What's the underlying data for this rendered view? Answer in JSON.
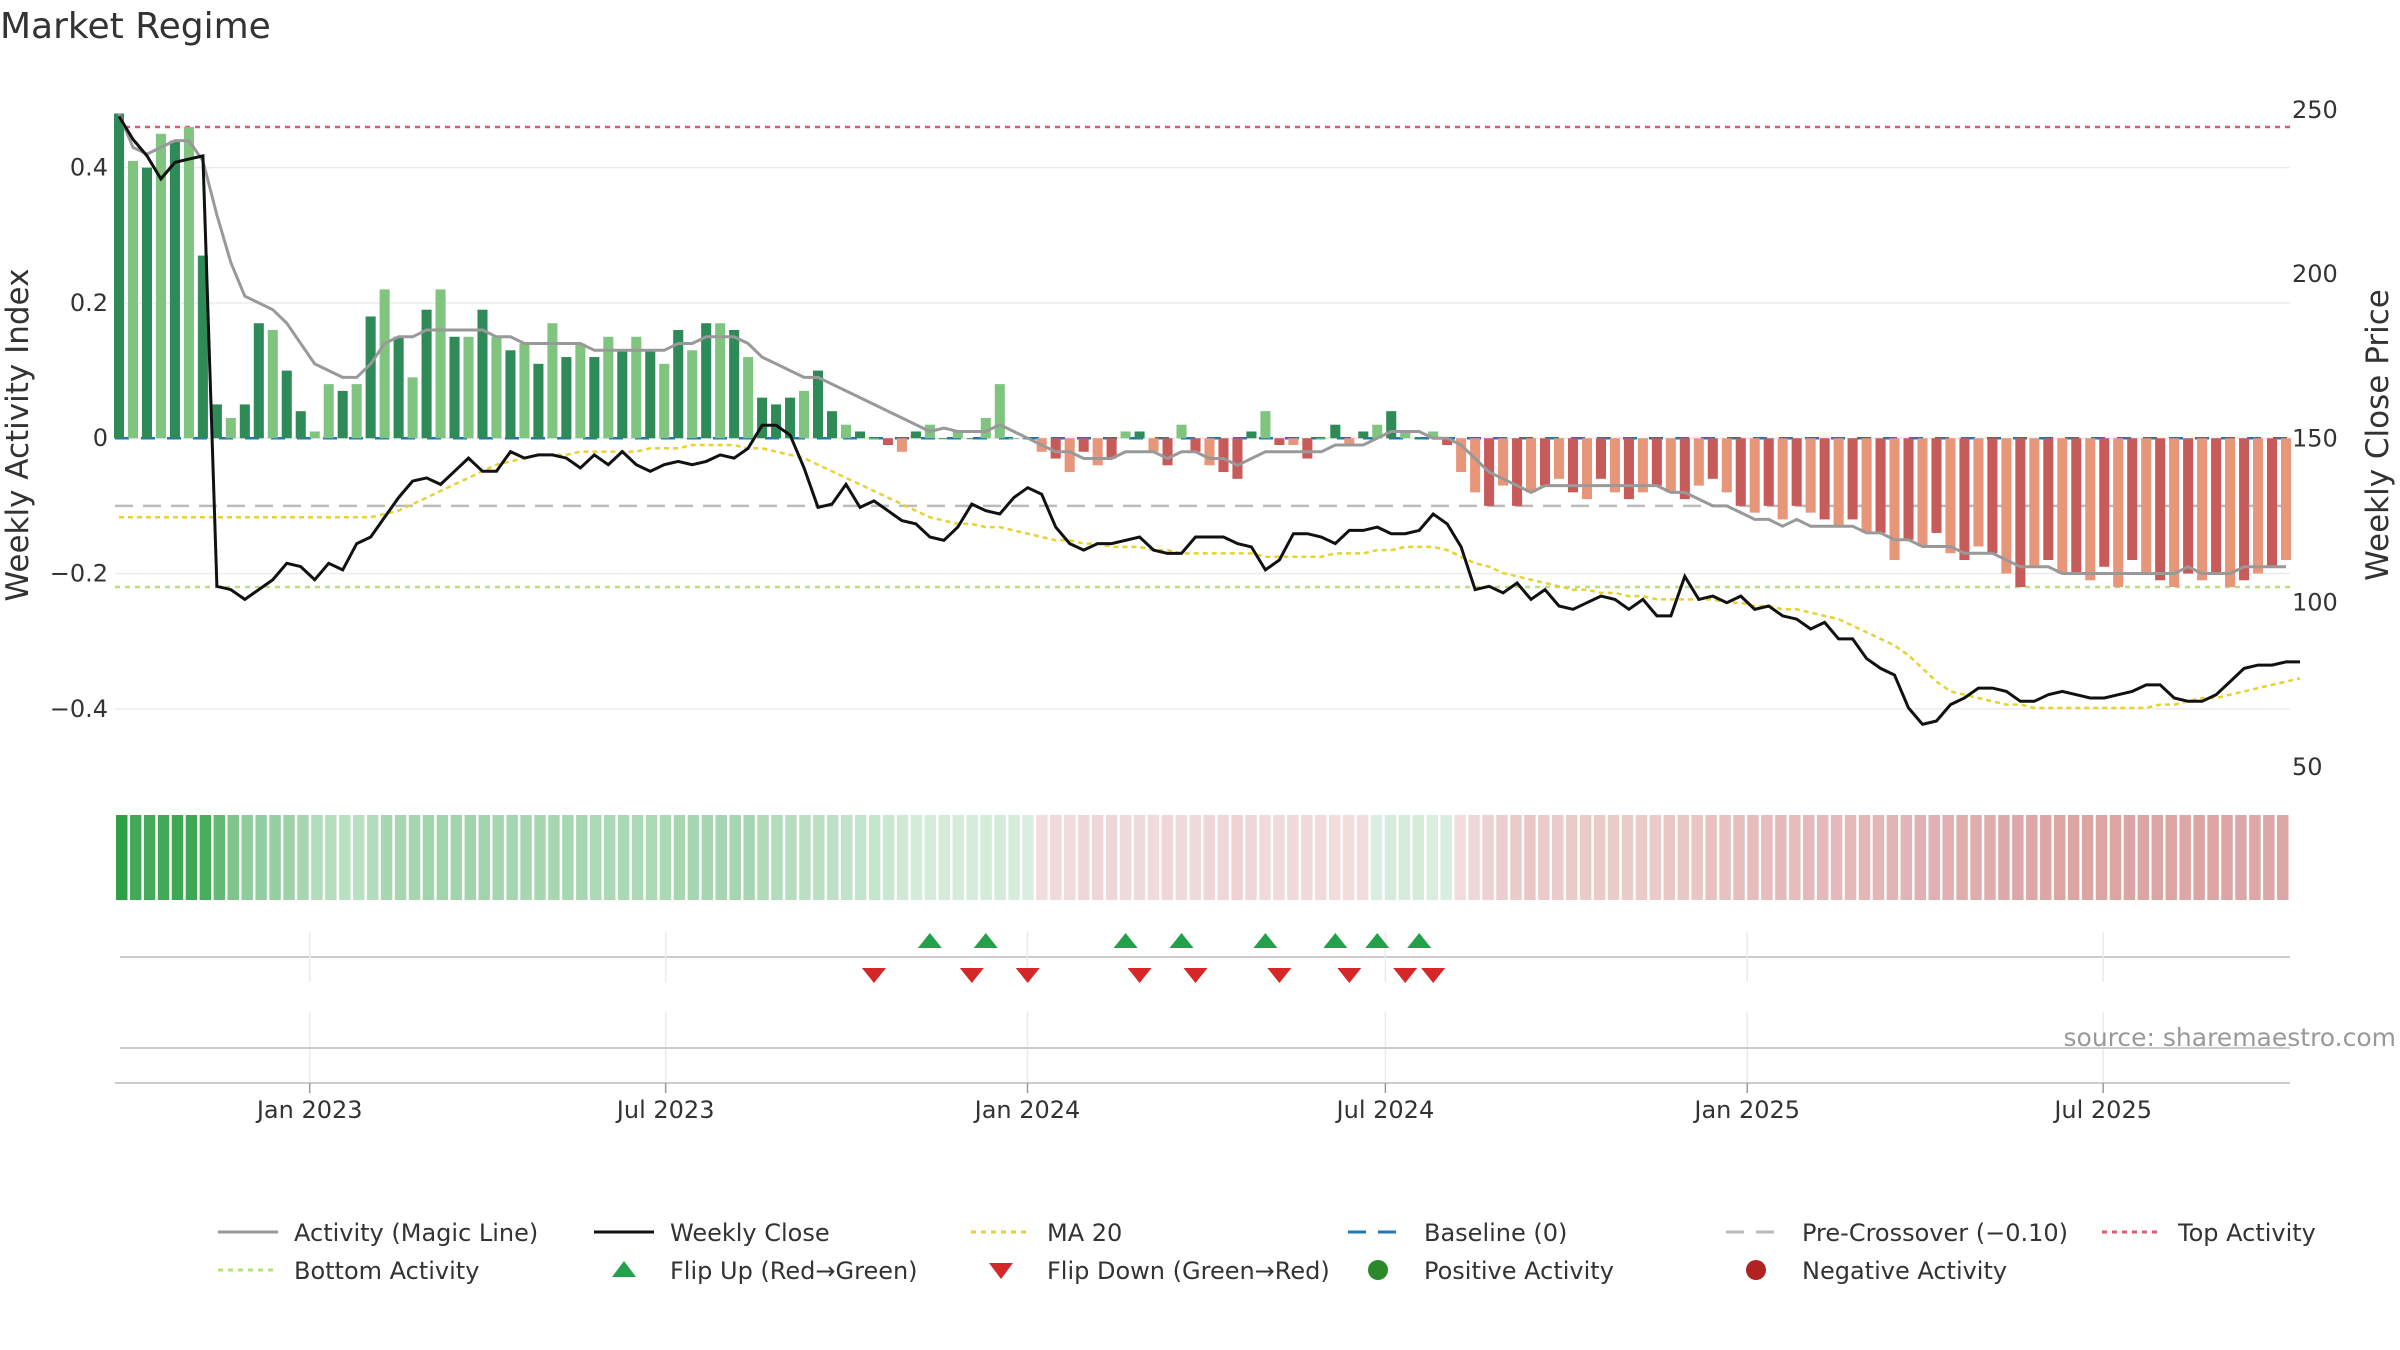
{
  "chart_data": {
    "type": "bar",
    "title": "Market Regime",
    "ylabel_left": "Weekly Activity Index",
    "ylabel_right": "Weekly Close Price",
    "source": "source: sharemaestro.com",
    "x_start": "2022-09-24",
    "x_end": "2025-10-04",
    "x_ticks": [
      {
        "date": "2023-01-01",
        "label": "Jan 2023"
      },
      {
        "date": "2023-07-01",
        "label": "Jul 2023"
      },
      {
        "date": "2024-01-01",
        "label": "Jan 2024"
      },
      {
        "date": "2024-07-01",
        "label": "Jul 2024"
      },
      {
        "date": "2025-01-01",
        "label": "Jan 2025"
      },
      {
        "date": "2025-07-01",
        "label": "Jul 2025"
      }
    ],
    "y_left": {
      "ylim": [
        -0.52,
        0.5
      ],
      "ticks": [
        {
          "v": 0.4,
          "label": "0.4"
        },
        {
          "v": 0.2,
          "label": "0.2"
        },
        {
          "v": 0,
          "label": "0"
        },
        {
          "v": -0.2,
          "label": "−0.2"
        },
        {
          "v": -0.4,
          "label": "−0.4"
        }
      ]
    },
    "y_right": {
      "ylim": [
        43,
        253
      ],
      "ticks": [
        {
          "v": 250,
          "label": "250"
        },
        {
          "v": 200,
          "label": "200"
        },
        {
          "v": 150,
          "label": "150"
        },
        {
          "v": 100,
          "label": "100"
        },
        {
          "v": 50,
          "label": "50"
        }
      ]
    },
    "reference_lines": {
      "top_activity": 0.46,
      "bottom_activity": -0.22,
      "pre_crossover": -0.1,
      "baseline": 0
    },
    "activity_bars": [
      0.48,
      0.41,
      0.4,
      0.45,
      0.44,
      0.46,
      0.27,
      0.05,
      0.03,
      0.05,
      0.17,
      0.16,
      0.1,
      0.04,
      0.01,
      0.08,
      0.07,
      0.08,
      0.18,
      0.22,
      0.15,
      0.09,
      0.19,
      0.22,
      0.15,
      0.15,
      0.19,
      0.15,
      0.13,
      0.14,
      0.11,
      0.17,
      0.12,
      0.14,
      0.12,
      0.15,
      0.13,
      0.15,
      0.13,
      0.11,
      0.16,
      0.13,
      0.17,
      0.17,
      0.16,
      0.12,
      0.06,
      0.05,
      0.06,
      0.07,
      0.1,
      0.04,
      0.02,
      0.01,
      0.0,
      -0.01,
      -0.02,
      0.01,
      0.02,
      0.0,
      0.01,
      0.0,
      0.03,
      0.08,
      0.0,
      0.0,
      -0.02,
      -0.03,
      -0.05,
      -0.02,
      -0.04,
      -0.03,
      0.01,
      0.01,
      -0.02,
      -0.04,
      0.02,
      -0.02,
      -0.04,
      -0.05,
      -0.06,
      0.01,
      0.04,
      -0.01,
      -0.01,
      -0.03,
      0.0,
      0.02,
      -0.01,
      0.01,
      0.02,
      0.04,
      0.01,
      0.0,
      0.01,
      -0.01,
      -0.05,
      -0.08,
      -0.1,
      -0.07,
      -0.1,
      -0.08,
      -0.07,
      -0.06,
      -0.08,
      -0.09,
      -0.06,
      -0.08,
      -0.09,
      -0.08,
      -0.07,
      -0.08,
      -0.09,
      -0.07,
      -0.06,
      -0.08,
      -0.1,
      -0.11,
      -0.1,
      -0.12,
      -0.1,
      -0.11,
      -0.12,
      -0.13,
      -0.12,
      -0.14,
      -0.14,
      -0.18,
      -0.15,
      -0.16,
      -0.14,
      -0.17,
      -0.18,
      -0.16,
      -0.17,
      -0.2,
      -0.22,
      -0.19,
      -0.18,
      -0.2,
      -0.2,
      -0.21,
      -0.19,
      -0.22,
      -0.18,
      -0.2,
      -0.21,
      -0.22,
      -0.2,
      -0.21,
      -0.2,
      -0.22,
      -0.21,
      -0.2,
      -0.19,
      -0.18
    ],
    "magic_line": [
      0.48,
      0.43,
      0.42,
      0.43,
      0.44,
      0.44,
      0.41,
      0.33,
      0.26,
      0.21,
      0.2,
      0.19,
      0.17,
      0.14,
      0.11,
      0.1,
      0.09,
      0.09,
      0.11,
      0.14,
      0.15,
      0.15,
      0.16,
      0.16,
      0.16,
      0.16,
      0.16,
      0.15,
      0.15,
      0.14,
      0.14,
      0.14,
      0.14,
      0.14,
      0.13,
      0.13,
      0.13,
      0.13,
      0.13,
      0.13,
      0.14,
      0.14,
      0.15,
      0.15,
      0.15,
      0.14,
      0.12,
      0.11,
      0.1,
      0.09,
      0.09,
      0.08,
      0.07,
      0.06,
      0.05,
      0.04,
      0.03,
      0.02,
      0.01,
      0.015,
      0.01,
      0.01,
      0.01,
      0.02,
      0.01,
      0.0,
      -0.01,
      -0.02,
      -0.02,
      -0.03,
      -0.03,
      -0.03,
      -0.02,
      -0.02,
      -0.02,
      -0.03,
      -0.02,
      -0.02,
      -0.03,
      -0.03,
      -0.04,
      -0.03,
      -0.02,
      -0.02,
      -0.02,
      -0.02,
      -0.02,
      -0.01,
      -0.01,
      -0.01,
      0.0,
      0.01,
      0.01,
      0.01,
      0.0,
      0.0,
      -0.01,
      -0.03,
      -0.05,
      -0.06,
      -0.07,
      -0.08,
      -0.07,
      -0.07,
      -0.07,
      -0.07,
      -0.07,
      -0.07,
      -0.07,
      -0.07,
      -0.07,
      -0.08,
      -0.08,
      -0.09,
      -0.1,
      -0.1,
      -0.11,
      -0.12,
      -0.12,
      -0.13,
      -0.12,
      -0.13,
      -0.13,
      -0.13,
      -0.13,
      -0.14,
      -0.14,
      -0.15,
      -0.15,
      -0.16,
      -0.16,
      -0.16,
      -0.17,
      -0.17,
      -0.17,
      -0.18,
      -0.19,
      -0.19,
      -0.19,
      -0.2,
      -0.2,
      -0.2,
      -0.2,
      -0.2,
      -0.2,
      -0.2,
      -0.2,
      -0.2,
      -0.19,
      -0.2,
      -0.2,
      -0.2,
      -0.19,
      -0.19,
      -0.19,
      -0.19
    ],
    "weekly_close": [
      248,
      241,
      236,
      229,
      234,
      235,
      236,
      105,
      104,
      101,
      104,
      107,
      112,
      111,
      107,
      112,
      110,
      118,
      120,
      126,
      132,
      137,
      138,
      136,
      140,
      144,
      140,
      140,
      146,
      144,
      145,
      145,
      144,
      141,
      145,
      142,
      146,
      142,
      140,
      142,
      143,
      142,
      143,
      145,
      144,
      147,
      154,
      154,
      151,
      141,
      129,
      130,
      136,
      129,
      131,
      128,
      125,
      124,
      120,
      119,
      123,
      130,
      128,
      127,
      132,
      135,
      133,
      123,
      118,
      116,
      118,
      118,
      119,
      120,
      116,
      115,
      115,
      120,
      120,
      120,
      118,
      117,
      110,
      113,
      121,
      121,
      120,
      118,
      122,
      122,
      123,
      121,
      121,
      122,
      127,
      124,
      117,
      104,
      105,
      103,
      106,
      101,
      104,
      99,
      98,
      100,
      102,
      101,
      98,
      101,
      96,
      96,
      108,
      101,
      102,
      100,
      102,
      98,
      99,
      96,
      95,
      92,
      94,
      89,
      89,
      83,
      80,
      78,
      68,
      63,
      64,
      69,
      71,
      74,
      74,
      73,
      70,
      70,
      72,
      73,
      72,
      71,
      71,
      72,
      73,
      75,
      75,
      71,
      70,
      70,
      72,
      76,
      80,
      81,
      81,
      82,
      82
    ],
    "ma20": [
      126,
      126,
      126,
      126,
      126,
      126,
      126,
      126,
      126,
      126,
      126,
      126,
      126,
      126,
      126,
      126,
      126,
      126,
      126,
      127,
      128,
      130,
      132,
      134,
      136,
      138,
      140,
      142,
      143,
      144,
      145,
      145,
      145,
      146,
      146,
      146,
      146,
      146,
      147,
      147,
      147,
      148,
      148,
      148,
      148,
      147,
      147,
      146,
      145,
      144,
      142,
      140,
      138,
      136,
      134,
      132,
      130,
      128,
      126,
      125,
      124,
      124,
      123,
      123,
      122,
      121,
      120,
      119,
      119,
      118,
      118,
      117,
      117,
      117,
      116,
      116,
      115,
      115,
      115,
      115,
      115,
      115,
      114,
      114,
      114,
      114,
      114,
      115,
      115,
      115,
      116,
      116,
      117,
      117,
      117,
      116,
      114,
      112,
      111,
      109,
      108,
      107,
      106,
      105,
      104,
      104,
      103,
      103,
      102,
      102,
      101,
      101,
      101,
      101,
      101,
      100,
      100,
      99,
      99,
      98,
      98,
      97,
      96,
      95,
      93,
      91,
      89,
      87,
      84,
      80,
      76,
      73,
      72,
      71,
      70,
      69,
      69,
      68,
      68,
      68,
      68,
      68,
      68,
      68,
      68,
      68,
      69,
      69,
      70,
      71,
      71,
      72,
      73,
      74,
      75,
      76,
      77
    ],
    "flip_up_weeks": [
      58,
      62,
      72,
      76,
      82,
      87,
      90,
      93
    ],
    "flip_down_weeks": [
      54,
      61,
      65,
      73,
      77,
      83,
      88,
      92,
      94
    ],
    "series": [
      {
        "name": "Activity (Magic Line)",
        "style": "solid",
        "color": "#999999"
      },
      {
        "name": "Weekly Close",
        "style": "solid",
        "color": "#111111"
      },
      {
        "name": "MA 20",
        "style": "dotted",
        "color": "#e6d230"
      },
      {
        "name": "Baseline (0)",
        "style": "dashed",
        "color": "#1f77b4"
      },
      {
        "name": "Pre-Crossover (−0.10)",
        "style": "dashed",
        "color": "#bbbbbb"
      },
      {
        "name": "Top Activity",
        "style": "dotted",
        "color": "#e05a6e"
      },
      {
        "name": "Bottom Activity",
        "style": "dotted",
        "color": "#b5e07a"
      },
      {
        "name": "Flip Up (Red→Green)",
        "style": "triangle-up",
        "color": "#22a04a"
      },
      {
        "name": "Flip Down (Green→Red)",
        "style": "triangle-down",
        "color": "#d62728"
      },
      {
        "name": "Positive Activity",
        "style": "circle",
        "color": "#2a8a2a"
      },
      {
        "name": "Negative Activity",
        "style": "circle",
        "color": "#b22222"
      }
    ],
    "colors": {
      "pos_dark": "#2e8b57",
      "pos_light": "#7fc47f",
      "neg_dark": "#c85a5a",
      "neg_light": "#e8967a"
    }
  }
}
